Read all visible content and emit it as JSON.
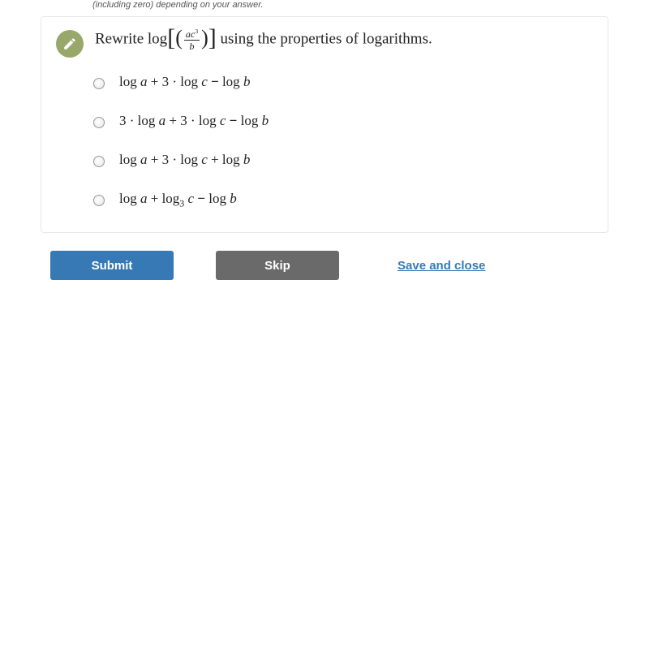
{
  "hint_text": "(including zero) depending on your answer.",
  "question": {
    "prefix": "Rewrite log",
    "frac_num": "ac",
    "frac_num_sup": "3",
    "frac_den": "b",
    "suffix": " using the properties of logarithms."
  },
  "options": [
    {
      "html": "log <span class='ital'>a</span> + 3 · log <span class='ital'>c</span> <b>−</b> log <span class='ital'>b</span>"
    },
    {
      "html": "3 · log <span class='ital'>a</span> + 3 · log <span class='ital'>c</span> <b>−</b> log <span class='ital'>b</span>"
    },
    {
      "html": "log <span class='ital'>a</span> + 3 · log <span class='ital'>c</span> + log <span class='ital'>b</span>"
    },
    {
      "html": "log <span class='ital'>a</span> + log<sub>3</sub> <span class='ital'>c</span> <b>−</b> log <span class='ital'>b</span>"
    }
  ],
  "buttons": {
    "submit": "Submit",
    "skip": "Skip",
    "save": "Save and close"
  },
  "colors": {
    "submit_bg": "#3779b5",
    "skip_bg": "#6a6a6a",
    "pencil_bg": "#98a86b",
    "link": "#3779b5",
    "card_border": "#e8e8e8"
  }
}
